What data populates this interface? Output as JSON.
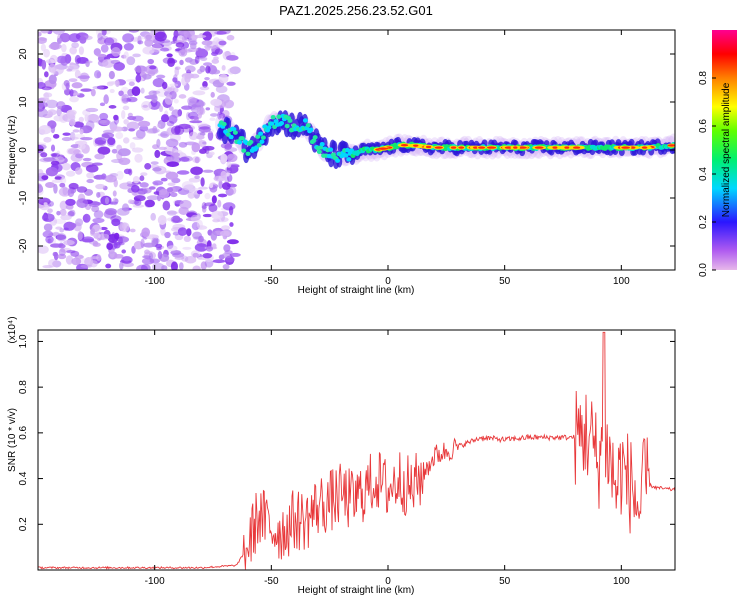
{
  "title": "PAZ1.2025.256.23.52.G01",
  "colors": {
    "snr_line": "#e8383a",
    "frame": "#000000",
    "spectro_track_core": "#ff2a10",
    "spectro_track_mid": "#12e86a",
    "spectro_track_edge": "#2a16d8",
    "spectro_noise": "#8a3cf0"
  },
  "chart_data": [
    {
      "type": "heatmap",
      "name": "spectrogram",
      "xlabel": "Height of straight line (km)",
      "ylabel": "Frequency (Hz)",
      "xlim": [
        -150,
        123
      ],
      "ylim": [
        -25,
        25
      ],
      "x_ticks": [
        -100,
        -50,
        0,
        50,
        100
      ],
      "y_ticks": [
        -20,
        -10,
        0,
        10,
        20
      ],
      "grid": false,
      "colorbar": {
        "label": "Normalized spectral amplitude",
        "range": [
          0,
          1
        ],
        "ticks": [
          "0.0",
          "0.2",
          "0.4",
          "0.6",
          "0.8"
        ],
        "colormap": "rainbow (magenta-blue-cyan-green-yellow-red-pink)"
      },
      "signal_track": {
        "description_points_x": [
          -72,
          -65,
          -60,
          -55,
          -50,
          -45,
          -40,
          -35,
          -30,
          -25,
          -20,
          -15,
          -10,
          -5,
          0,
          5,
          10,
          20,
          30,
          40,
          50,
          60,
          70,
          80,
          90,
          100,
          110,
          123
        ],
        "description_points_freq_hz": [
          5,
          3,
          0,
          2,
          6,
          6,
          5,
          5,
          1,
          -1,
          -1,
          -1,
          0,
          0,
          0.5,
          1,
          1,
          0.5,
          0.5,
          0.5,
          0.5,
          0.5,
          0.5,
          0.5,
          0.5,
          0.5,
          0.5,
          1
        ]
      },
      "noise_region_x": [
        -150,
        -68
      ]
    },
    {
      "type": "line",
      "name": "snr",
      "xlabel": "Height of straight line (km)",
      "ylabel": "SNR (10 * v/v)",
      "y_multiplier": "(x10⁴)",
      "xlim": [
        -150,
        123
      ],
      "ylim": [
        0,
        1.05
      ],
      "x_ticks": [
        -100,
        -50,
        0,
        50,
        100
      ],
      "y_ticks": [
        0.2,
        0.4,
        0.6,
        0.8,
        1.0
      ],
      "grid": false,
      "series": [
        {
          "x": [
            -150,
            -140,
            -120,
            -100,
            -80,
            -65,
            -60,
            -57,
            -55,
            -50,
            -45,
            -40,
            -35,
            -30,
            -25,
            -20,
            -15,
            -10,
            -5,
            0,
            5,
            10,
            15,
            20,
            30,
            40,
            50,
            60,
            70,
            80,
            85,
            88,
            90,
            92,
            95,
            98,
            100,
            105,
            108,
            110,
            115,
            123
          ],
          "y": [
            0.01,
            0.01,
            0.01,
            0.01,
            0.01,
            0.02,
            0.1,
            0.2,
            0.24,
            0.18,
            0.17,
            0.22,
            0.22,
            0.28,
            0.3,
            0.33,
            0.3,
            0.35,
            0.4,
            0.35,
            0.4,
            0.35,
            0.42,
            0.5,
            0.54,
            0.58,
            0.57,
            0.58,
            0.58,
            0.58,
            0.6,
            0.55,
            0.45,
            0.6,
            0.48,
            0.35,
            0.45,
            0.35,
            0.25,
            0.38,
            0.36,
            0.35
          ]
        }
      ]
    }
  ]
}
